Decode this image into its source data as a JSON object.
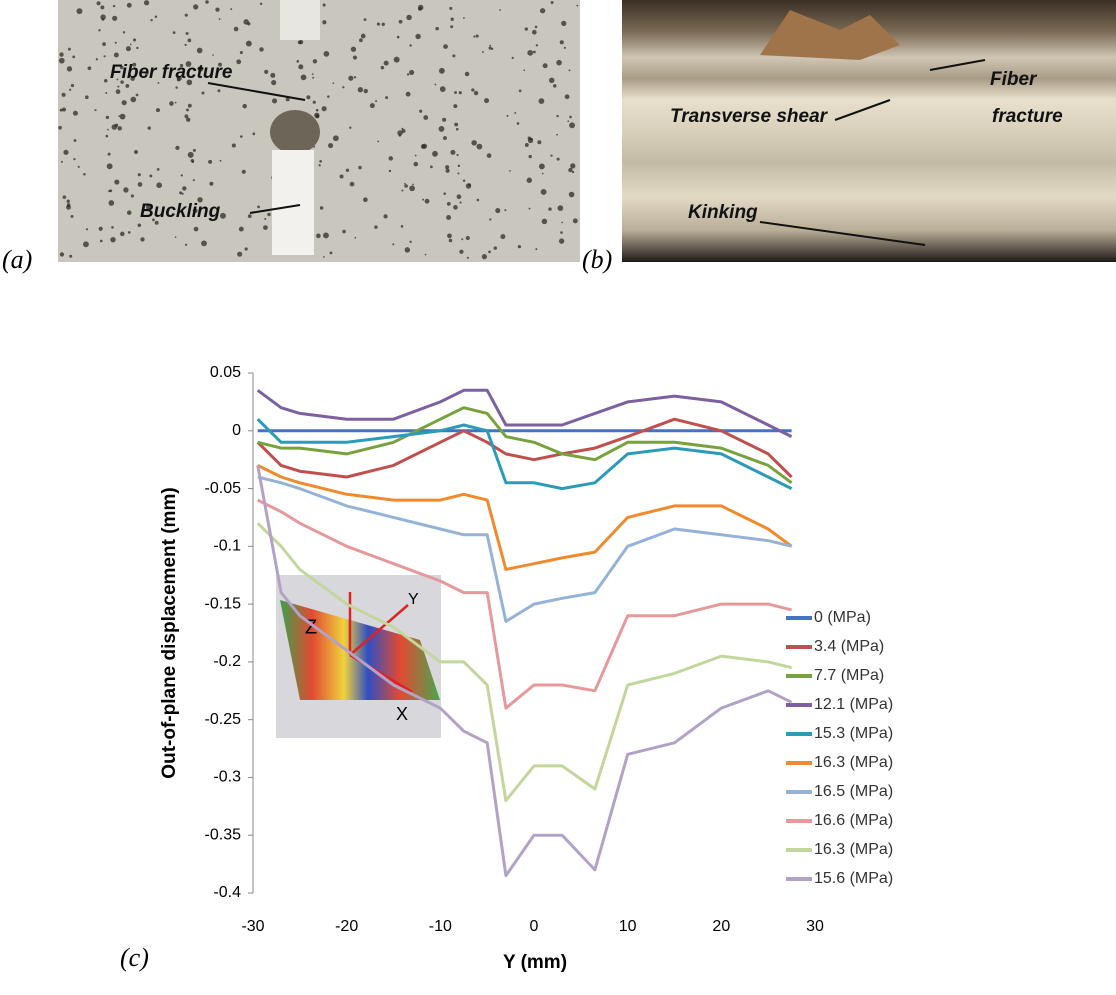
{
  "figure": {
    "panel_a": {
      "caption": "(a)",
      "labels": [
        "Fiber fracture",
        "Buckling"
      ]
    },
    "panel_b": {
      "caption": "(b)",
      "labels": [
        "Transverse shear",
        "Fiber",
        "fracture",
        "Kinking"
      ]
    },
    "panel_c": {
      "caption": "(c)"
    }
  },
  "chart_data": {
    "type": "line",
    "x_label": "Y (mm)",
    "y_label": "Out-of-plane  displacement (mm)",
    "inset_labels": [
      "Z",
      "Y",
      "X"
    ],
    "x": [
      -29.5,
      -27,
      -25,
      -20,
      -15,
      -10,
      -7.5,
      -5,
      -3,
      0,
      3,
      6.5,
      10,
      15,
      20,
      25,
      27.5
    ],
    "xlim": [
      -30,
      30
    ],
    "xticks": [
      -30,
      -20,
      -10,
      0,
      10,
      20,
      30
    ],
    "ylim": [
      -0.4,
      0.05
    ],
    "yticks": [
      0.05,
      0,
      -0.05,
      -0.1,
      -0.15,
      -0.2,
      -0.25,
      -0.3,
      -0.35,
      -0.4
    ],
    "series": [
      {
        "name": "0 (MPa)",
        "color": "#4472c4",
        "values": [
          0,
          0,
          0,
          0,
          0,
          0,
          0,
          0,
          0,
          0,
          0,
          0,
          0,
          0,
          0,
          0,
          0
        ]
      },
      {
        "name": "3.4 (MPa)",
        "color": "#c0504d",
        "values": [
          -0.01,
          -0.03,
          -0.035,
          -0.04,
          -0.03,
          -0.01,
          0.0,
          -0.01,
          -0.02,
          -0.025,
          -0.02,
          -0.015,
          -0.005,
          0.01,
          0.0,
          -0.02,
          -0.04
        ]
      },
      {
        "name": "7.7 (MPa)",
        "color": "#77a23c",
        "values": [
          -0.01,
          -0.015,
          -0.015,
          -0.02,
          -0.01,
          0.01,
          0.02,
          0.015,
          -0.005,
          -0.01,
          -0.02,
          -0.025,
          -0.01,
          -0.01,
          -0.015,
          -0.03,
          -0.045
        ]
      },
      {
        "name": "12.1 (MPa)",
        "color": "#7d60a0",
        "values": [
          0.035,
          0.02,
          0.015,
          0.01,
          0.01,
          0.025,
          0.035,
          0.035,
          0.005,
          0.005,
          0.005,
          0.015,
          0.025,
          0.03,
          0.025,
          0.005,
          -0.005
        ]
      },
      {
        "name": "15.3 (MPa)",
        "color": "#2b9bb8",
        "values": [
          0.01,
          -0.01,
          -0.01,
          -0.01,
          -0.005,
          0.0,
          0.005,
          0.0,
          -0.045,
          -0.045,
          -0.05,
          -0.045,
          -0.02,
          -0.015,
          -0.02,
          -0.04,
          -0.05
        ]
      },
      {
        "name": "16.3 (MPa)",
        "color": "#f08a2c",
        "values": [
          -0.03,
          -0.04,
          -0.045,
          -0.055,
          -0.06,
          -0.06,
          -0.055,
          -0.06,
          -0.12,
          -0.115,
          -0.11,
          -0.105,
          -0.075,
          -0.065,
          -0.065,
          -0.085,
          -0.1
        ]
      },
      {
        "name": "16.5 (MPa)",
        "color": "#95b3d7",
        "values": [
          -0.04,
          -0.045,
          -0.05,
          -0.065,
          -0.075,
          -0.085,
          -0.09,
          -0.09,
          -0.165,
          -0.15,
          -0.145,
          -0.14,
          -0.1,
          -0.085,
          -0.09,
          -0.095,
          -0.1
        ]
      },
      {
        "name": "16.6 (MPa)",
        "color": "#e6999a",
        "values": [
          -0.06,
          -0.07,
          -0.08,
          -0.1,
          -0.115,
          -0.13,
          -0.14,
          -0.14,
          -0.24,
          -0.22,
          -0.22,
          -0.225,
          -0.16,
          -0.16,
          -0.15,
          -0.15,
          -0.155
        ]
      },
      {
        "name": "16.3 (MPa)",
        "color": "#c3d69b",
        "values": [
          -0.08,
          -0.1,
          -0.12,
          -0.15,
          -0.17,
          -0.2,
          -0.2,
          -0.22,
          -0.32,
          -0.29,
          -0.29,
          -0.31,
          -0.22,
          -0.21,
          -0.195,
          -0.2,
          -0.205
        ]
      },
      {
        "name": "15.6 (MPa)",
        "color": "#b3a2c7",
        "values": [
          -0.03,
          -0.14,
          -0.16,
          -0.19,
          -0.22,
          -0.24,
          -0.26,
          -0.27,
          -0.385,
          -0.35,
          -0.35,
          -0.38,
          -0.28,
          -0.27,
          -0.24,
          -0.225,
          -0.235
        ]
      }
    ]
  }
}
